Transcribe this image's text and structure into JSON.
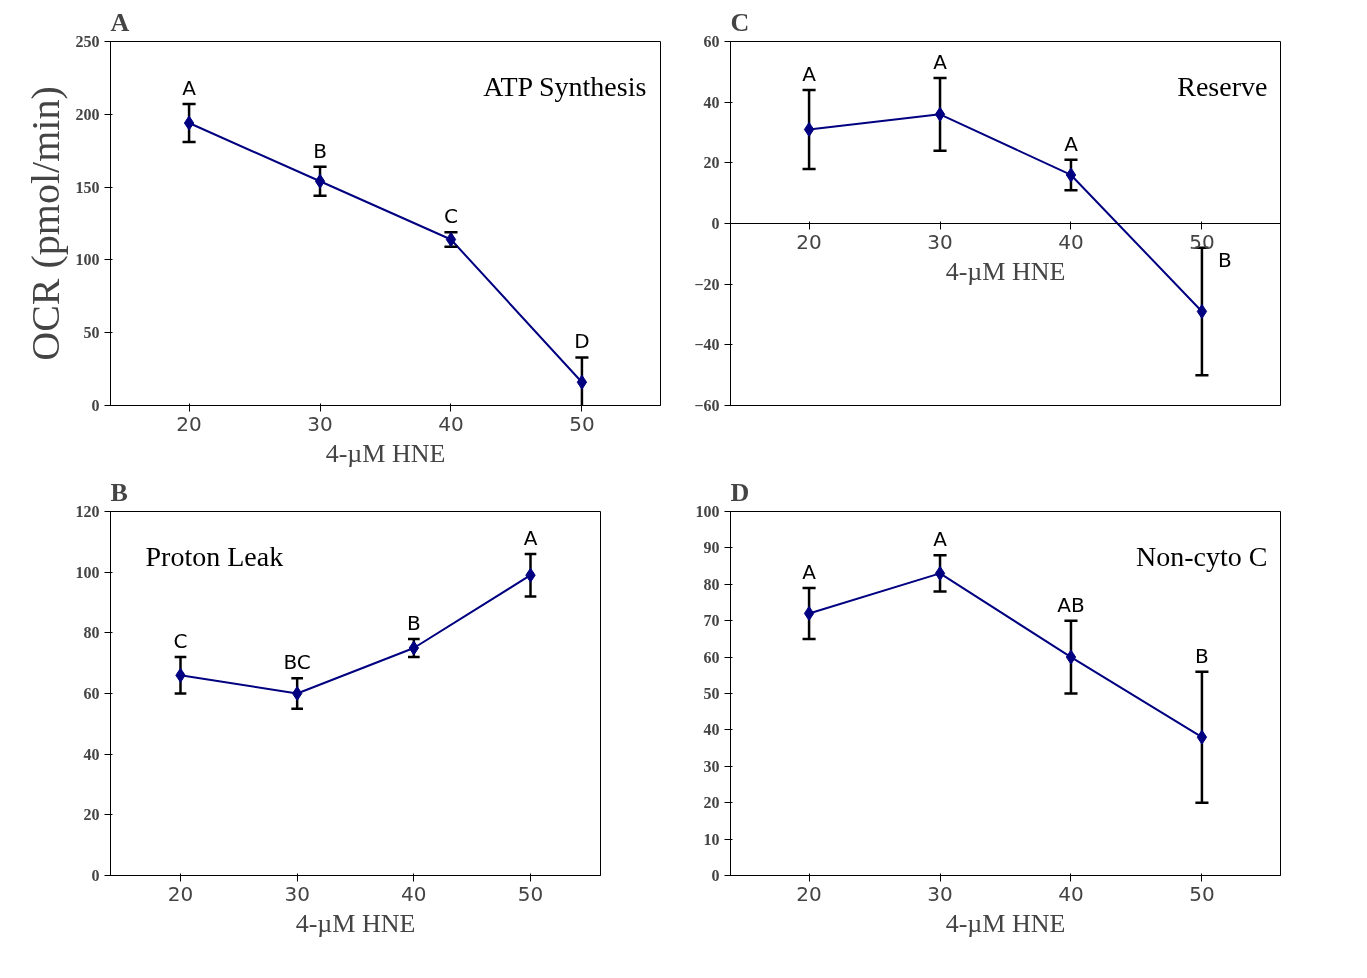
{
  "chart_data": [
    {
      "type": "line",
      "title": "A",
      "ylabel": "OCR (pmol/min)",
      "xlabel": "4-µM HNE",
      "categories": [
        "20",
        "30",
        "40",
        "50"
      ],
      "series": [
        {
          "color": "#000080",
          "values": [
            194,
            154,
            114,
            16
          ],
          "errors": [
            13,
            10,
            5,
            17
          ]
        }
      ],
      "ylim": [
        0,
        250
      ],
      "yticks": [
        0,
        50,
        100,
        150,
        200,
        250
      ],
      "marker": "diamond",
      "grid": false,
      "annotations": [
        "ATP Synthesis",
        "A",
        "B",
        "C",
        "D"
      ]
    },
    {
      "type": "line",
      "title": "C",
      "xlabel": "4-µM HNE",
      "categories": [
        "20",
        "30",
        "40",
        "50"
      ],
      "series": [
        {
          "color": "#000080",
          "values": [
            31,
            36,
            16,
            -29
          ],
          "errors": [
            13,
            12,
            5,
            21
          ]
        }
      ],
      "ylim": [
        -60,
        60
      ],
      "yticks": [
        -60,
        -40,
        -20,
        0,
        20,
        40,
        60
      ],
      "marker": "diamond",
      "grid": false,
      "annotations": [
        "Reserve",
        "A",
        "A",
        "A",
        "B"
      ]
    },
    {
      "type": "line",
      "title": "B",
      "xlabel": "4-µM HNE",
      "categories": [
        "20",
        "30",
        "40",
        "50"
      ],
      "series": [
        {
          "color": "#000080",
          "values": [
            66,
            60,
            75,
            99
          ],
          "errors": [
            6,
            5,
            3,
            7
          ]
        }
      ],
      "ylim": [
        0,
        120
      ],
      "yticks": [
        0,
        20,
        40,
        60,
        80,
        100,
        120
      ],
      "marker": "diamond",
      "grid": false,
      "annotations": [
        "Proton Leak",
        "C",
        "BC",
        "B",
        "A"
      ]
    },
    {
      "type": "line",
      "title": "D",
      "xlabel": "4-µM HNE",
      "categories": [
        "20",
        "30",
        "40",
        "50"
      ],
      "series": [
        {
          "color": "#000080",
          "values": [
            72,
            83,
            60,
            38
          ],
          "errors": [
            7,
            5,
            10,
            18
          ]
        }
      ],
      "ylim": [
        0,
        100
      ],
      "yticks": [
        0,
        10,
        20,
        30,
        40,
        50,
        60,
        70,
        80,
        90,
        100
      ],
      "marker": "diamond",
      "grid": false,
      "annotations": [
        "Non-cyto C",
        "A",
        "A",
        "AB",
        "B"
      ]
    }
  ]
}
